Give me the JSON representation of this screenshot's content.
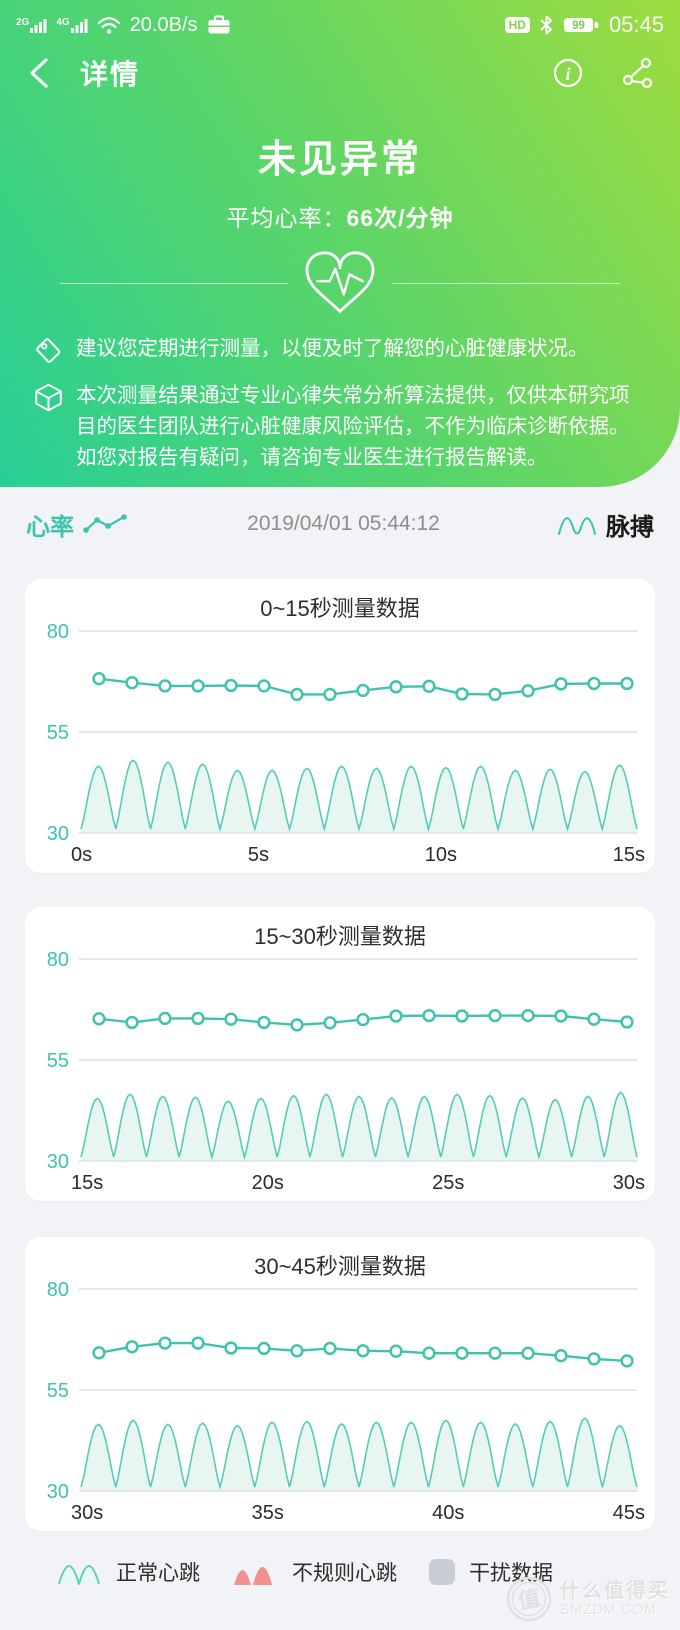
{
  "status_bar": {
    "net1_label": "2G",
    "net2_label": "4G",
    "speed": "20.0B/s",
    "hd_label": "HD",
    "battery_percent": "99",
    "time": "05:45"
  },
  "header": {
    "title": "详情"
  },
  "result": {
    "status": "未见异常",
    "avg_label": "平均心率：",
    "avg_value": "66次/分钟"
  },
  "tips": [
    {
      "icon": "tag-icon",
      "text": "建议您定期进行测量，以便及时了解您的心脏健康状况。"
    },
    {
      "icon": "cube-icon",
      "text": "本次测量结果通过专业心律失常分析算法提供，仅供本研究项目的医生团队进行心脏健康风险评估，不作为临床诊断依据。如您对报告有疑问，请咨询专业医生进行报告解读。"
    }
  ],
  "section_header": {
    "left_label": "心率",
    "timestamp": "2019/04/01 05:44:12",
    "right_label": "脉搏"
  },
  "chart_data": [
    {
      "type": "line",
      "title": "0~15秒测量数据",
      "x_range_seconds": [
        0,
        15
      ],
      "x_tick_labels": [
        "0s",
        "5s",
        "10s",
        "15s"
      ],
      "y_ticks": [
        80,
        55,
        30
      ],
      "ylim": [
        30,
        80
      ],
      "grid": true,
      "heart_rate_series": {
        "name": "心率",
        "values": [
          68.2,
          67.2,
          66.4,
          66.4,
          66.5,
          66.4,
          64.3,
          64.3,
          65.3,
          66.2,
          66.3,
          64.4,
          64.3,
          65.2,
          66.9,
          67.0,
          67.0
        ]
      },
      "pulse_wave": {
        "name": "脉搏波",
        "base": 31,
        "peaks": [
          46.5,
          48,
          47.5,
          47,
          45.5,
          45.5,
          46,
          46.5,
          46,
          46.5,
          46.2,
          46.5,
          45.5,
          45.8,
          45.2,
          46.8
        ]
      }
    },
    {
      "type": "line",
      "title": "15~30秒测量数据",
      "x_range_seconds": [
        15,
        30
      ],
      "x_tick_labels": [
        "15s",
        "20s",
        "25s",
        "30s"
      ],
      "y_ticks": [
        80,
        55,
        30
      ],
      "ylim": [
        30,
        80
      ],
      "grid": true,
      "heart_rate_series": {
        "name": "心率",
        "values": [
          65.2,
          64.3,
          65.3,
          65.3,
          65.1,
          64.3,
          63.7,
          64.2,
          65.0,
          65.9,
          66.0,
          65.9,
          66.0,
          66.0,
          65.9,
          65.1,
          64.4
        ]
      },
      "pulse_wave": {
        "name": "脉搏波",
        "base": 31,
        "peaks": [
          45.5,
          46.5,
          46,
          45.8,
          44.8,
          45.5,
          46.2,
          46.5,
          46,
          45.6,
          46,
          46.5,
          46.2,
          45.6,
          45.2,
          46,
          47
        ]
      }
    },
    {
      "type": "line",
      "title": "30~45秒测量数据",
      "x_range_seconds": [
        30,
        45
      ],
      "x_tick_labels": [
        "30s",
        "35s",
        "40s",
        "45s"
      ],
      "y_ticks": [
        80,
        55,
        30
      ],
      "ylim": [
        30,
        80
      ],
      "grid": true,
      "heart_rate_series": {
        "name": "心率",
        "values": [
          64.2,
          65.7,
          66.6,
          66.6,
          65.4,
          65.3,
          64.7,
          65.3,
          64.7,
          64.6,
          64.1,
          64.1,
          64.1,
          64.1,
          63.5,
          62.7,
          62.2
        ]
      },
      "pulse_wave": {
        "name": "脉搏波",
        "base": 31,
        "peaks": [
          46.5,
          47.5,
          46.5,
          46.8,
          46.2,
          47,
          47.2,
          46.6,
          47,
          47,
          47.5,
          47,
          46.6,
          47.2,
          48,
          46.2
        ]
      }
    }
  ],
  "legend": [
    {
      "icon": "normal-heartbeat-wave-icon",
      "label": "正常心跳",
      "color": "#5fcfbe"
    },
    {
      "icon": "irregular-heartbeat-wave-icon",
      "label": "不规则心跳",
      "color": "#f2918f"
    },
    {
      "icon": "interference-square-icon",
      "label": "干扰数据",
      "color": "#c9ced6"
    }
  ],
  "watermark": {
    "stamp": "值",
    "name": "什么值得买",
    "site": "SMZDM.COM"
  },
  "colors": {
    "gradient_start": "#27cf96",
    "gradient_end": "#9edc3f",
    "accent_teal": "#3fc3ac",
    "wave_stroke": "#55cbba",
    "wave_fill": "#e8f6f2",
    "grid_line": "#d6d6d6",
    "irregular_pink": "#f2918f",
    "interference_gray": "#c9ced6",
    "page_bg": "#f1f3f6"
  }
}
